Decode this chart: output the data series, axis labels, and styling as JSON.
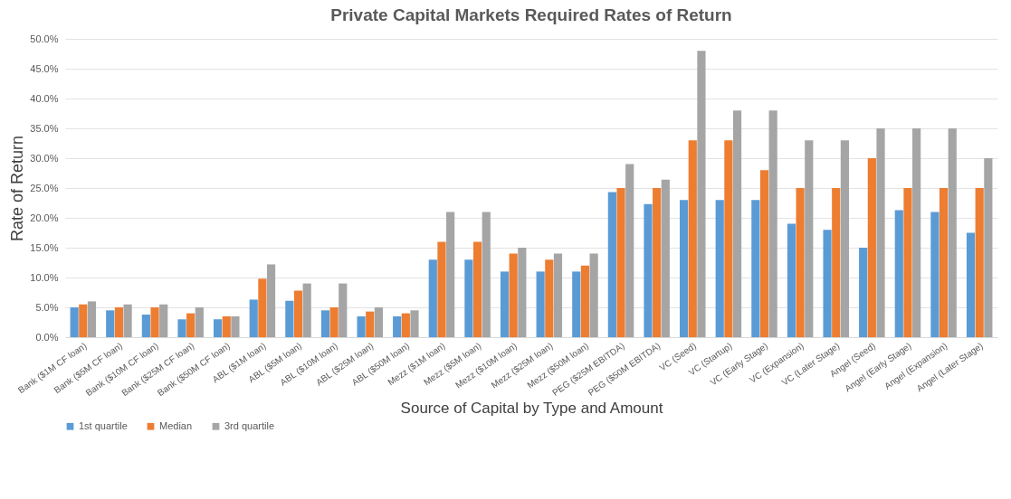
{
  "chart_data": {
    "type": "bar",
    "title": "Private Capital Markets Required Rates of Return",
    "xlabel": "Source of Capital by Type and Amount",
    "ylabel": "Rate of Return",
    "categories": [
      "Bank ($1M CF loan)",
      "Bank ($5M CF loan)",
      "Bank ($10M CF loan)",
      "Bank ($25M CF loan)",
      "Bank ($50M CF loan)",
      "ABL ($1M loan)",
      "ABL ($5M loan)",
      "ABL ($10M loan)",
      "ABL ($25M loan)",
      "ABL ($50M loan)",
      "Mezz ($1M loan)",
      "Mezz ($5M loan)",
      "Mezz ($10M loan)",
      "Mezz ($25M loan)",
      "Mezz ($50M loan)",
      "PEG ($25M EBITDA)",
      "PEG ($50M EBITDA)",
      "VC (Seed)",
      "VC (Startup)",
      "VC (Early Stage)",
      "VC (Expansion)",
      "VC (Later Stage)",
      "Angel (Seed)",
      "Angel (Early Stage)",
      "Angel (Expansion)",
      "Angel (Later Stage)"
    ],
    "series": [
      {
        "name": "1st quartile",
        "color": "#5b9bd5",
        "values": [
          5,
          4.5,
          3.8,
          3,
          3,
          6.3,
          6.1,
          4.5,
          3.5,
          3.5,
          13,
          13,
          11,
          11,
          11,
          24.3,
          22.3,
          23,
          23,
          23,
          19,
          18,
          15,
          21.3,
          21,
          17.5
        ]
      },
      {
        "name": "Median",
        "color": "#ed7d31",
        "values": [
          5.5,
          5,
          5,
          4,
          3.5,
          9.8,
          7.8,
          5,
          4.3,
          4,
          16,
          16,
          14,
          13,
          12,
          25,
          25,
          33,
          33,
          28,
          25,
          25,
          30,
          25,
          25,
          25
        ]
      },
      {
        "name": "3rd quartile",
        "color": "#a5a5a5",
        "values": [
          6,
          5.5,
          5.5,
          5,
          3.5,
          12.2,
          9,
          9,
          5,
          4.5,
          21,
          21,
          15,
          14,
          14,
          29,
          26.4,
          48,
          38,
          38,
          33,
          33,
          35,
          35,
          35,
          30
        ]
      }
    ],
    "ylim": [
      0,
      50
    ],
    "yticks": [
      {
        "value": 0,
        "label": "0.0%"
      },
      {
        "value": 5,
        "label": "5.0%"
      },
      {
        "value": 10,
        "label": "10.0%"
      },
      {
        "value": 15,
        "label": "15.0%"
      },
      {
        "value": 20,
        "label": "20.0%"
      },
      {
        "value": 25,
        "label": "25.0%"
      },
      {
        "value": 30,
        "label": "30.0%"
      },
      {
        "value": 35,
        "label": "35.0%"
      },
      {
        "value": 40,
        "label": "40.0%"
      },
      {
        "value": 45,
        "label": "45.0%"
      },
      {
        "value": 50,
        "label": "50.0%"
      }
    ],
    "grid": "y",
    "legend": "bottom"
  }
}
